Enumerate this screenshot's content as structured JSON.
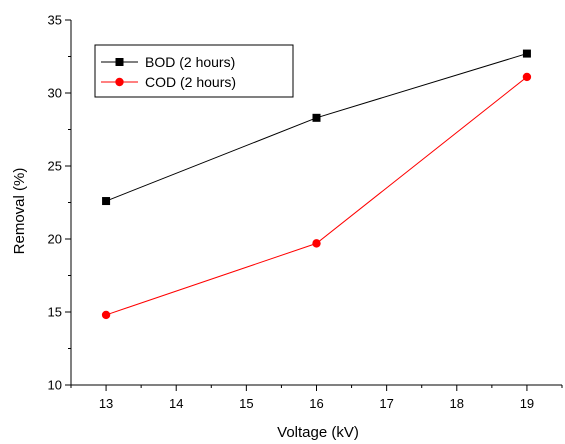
{
  "chart_data": {
    "type": "line",
    "title": "",
    "xlabel": "Voltage (kV)",
    "ylabel": "Removal (%)",
    "xlim": [
      12.5,
      19.5
    ],
    "ylim": [
      10,
      35
    ],
    "x_ticks": [
      13,
      14,
      15,
      16,
      17,
      18,
      19
    ],
    "y_ticks": [
      10,
      15,
      20,
      25,
      30,
      35
    ],
    "grid": false,
    "legend_position": "top-left",
    "series": [
      {
        "name": "BOD (2 hours)",
        "color": "#000000",
        "marker": "square",
        "x": [
          13,
          16,
          19
        ],
        "values": [
          22.6,
          28.3,
          32.7
        ]
      },
      {
        "name": "COD (2 hours)",
        "color": "#ff0000",
        "marker": "circle",
        "x": [
          13,
          16,
          19
        ],
        "values": [
          14.8,
          19.7,
          31.1
        ]
      }
    ]
  }
}
